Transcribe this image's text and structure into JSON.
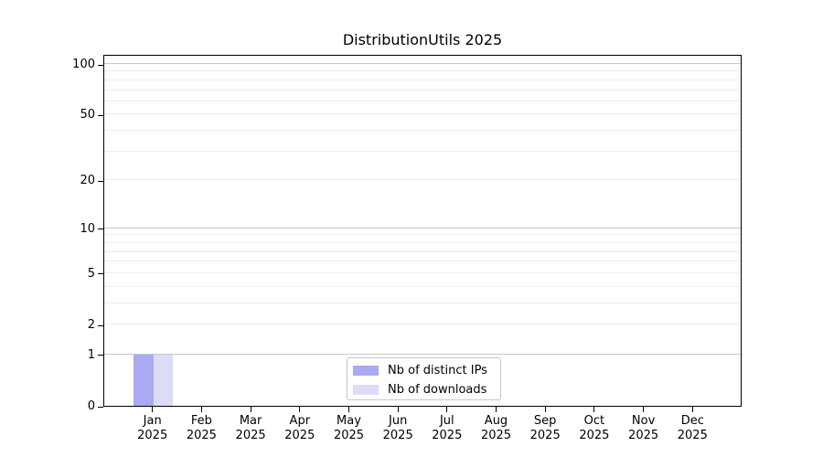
{
  "title": "DistributionUtils 2025",
  "chart_data": {
    "type": "bar",
    "title": "DistributionUtils 2025",
    "categories": [
      "Jan",
      "Feb",
      "Mar",
      "Apr",
      "May",
      "Jun",
      "Jul",
      "Aug",
      "Sep",
      "Oct",
      "Nov",
      "Dec"
    ],
    "x_year_label": "2025",
    "series": [
      {
        "name": "Nb of distinct IPs",
        "color": "#aaaaf2",
        "values": [
          1,
          0,
          0,
          0,
          0,
          0,
          0,
          0,
          0,
          0,
          0,
          0
        ]
      },
      {
        "name": "Nb of downloads",
        "color": "#dcdcf8",
        "values": [
          1,
          0,
          0,
          0,
          0,
          0,
          0,
          0,
          0,
          0,
          0,
          0
        ]
      }
    ],
    "yscale": "log1p",
    "ylim": [
      0,
      115
    ],
    "y_tick_values": [
      0,
      1,
      2,
      5,
      10,
      20,
      50,
      100
    ],
    "y_major_gridlines": [
      1,
      10,
      100
    ],
    "y_minor_gridlines": [
      2,
      3,
      4,
      5,
      6,
      7,
      8,
      9,
      20,
      30,
      40,
      50,
      60,
      70,
      80,
      90
    ],
    "grid_color_major": "#c9c9c9",
    "grid_color_minor": "#ececec",
    "legend_position": "lower center inside"
  },
  "legend": {
    "items": [
      {
        "label": "Nb of distinct IPs",
        "color": "#aaaaf2"
      },
      {
        "label": "Nb of downloads",
        "color": "#dcdcf8"
      }
    ]
  }
}
